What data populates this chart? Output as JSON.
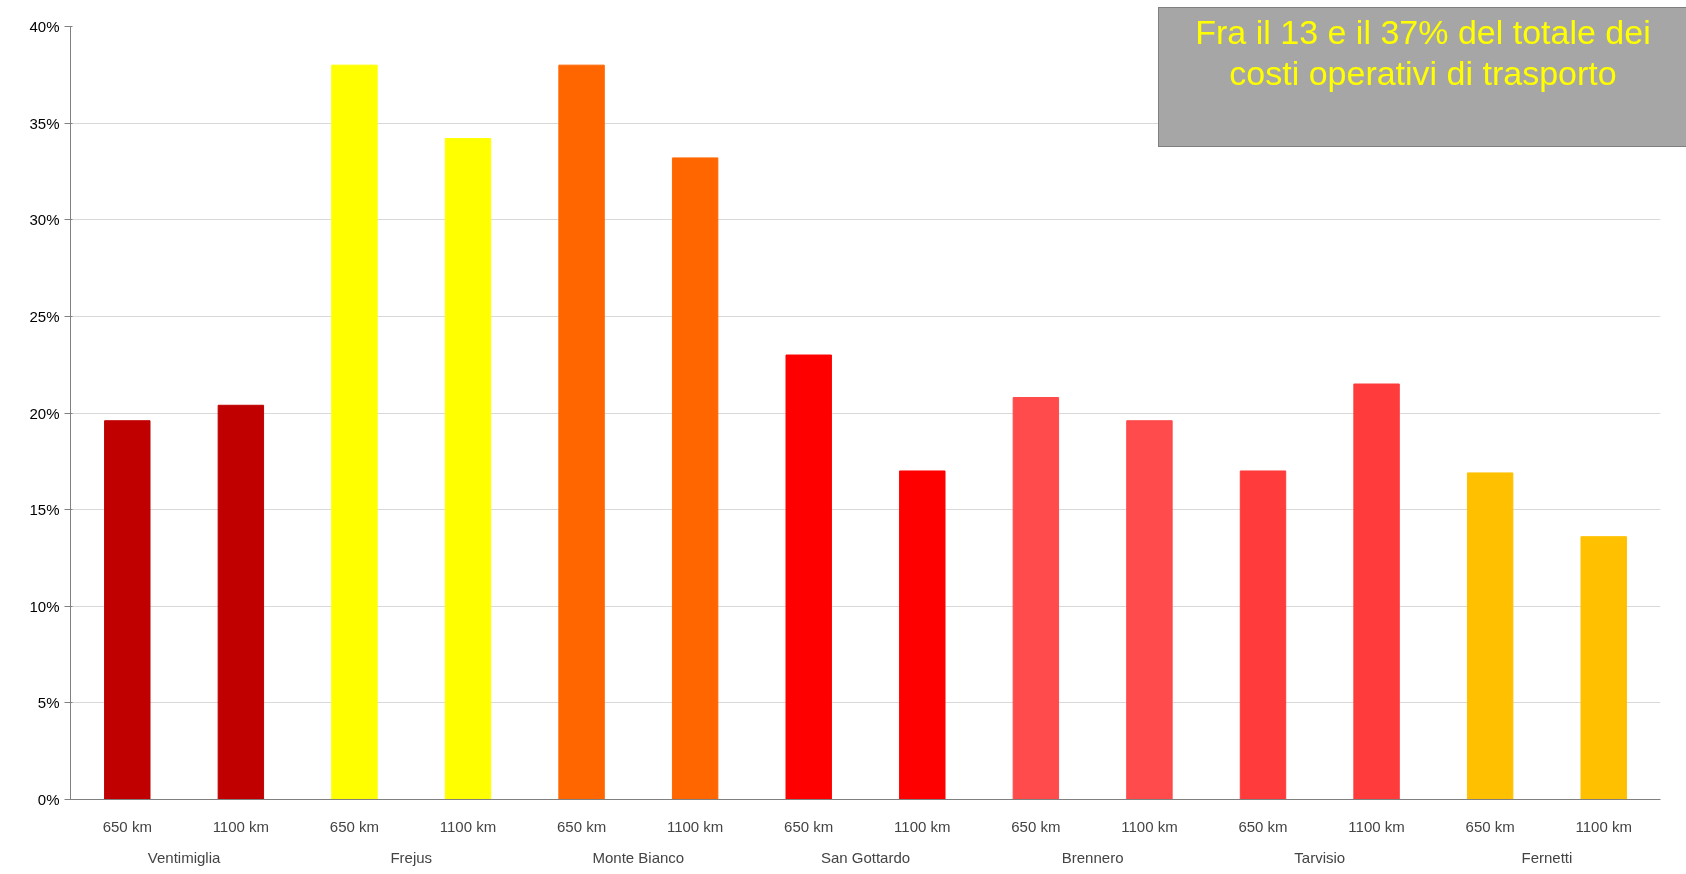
{
  "chart_data": {
    "type": "bar",
    "categories": [
      "650 km",
      "1100 km",
      "650 km",
      "1100 km",
      "650 km",
      "1100 km",
      "650 km",
      "1100 km",
      "650 km",
      "1100 km",
      "650 km",
      "1100 km",
      "650 km",
      "1100 km"
    ],
    "values": [
      19.6,
      20.4,
      38.0,
      34.2,
      38.0,
      33.2,
      23.0,
      17.0,
      20.8,
      19.6,
      17.0,
      21.5,
      16.9,
      13.6
    ],
    "colors": [
      "#c00000",
      "#c00000",
      "#ffff00",
      "#ffff00",
      "#ff6600",
      "#ff6600",
      "#ff0000",
      "#ff0000",
      "#ff4b4b",
      "#ff4b4b",
      "#ff3b3b",
      "#ff3b3b",
      "#ffc000",
      "#ffc000"
    ],
    "ylim": [
      0,
      40
    ],
    "yticks": [
      {
        "value": 0,
        "label": "0%"
      },
      {
        "value": 5,
        "label": "5%"
      },
      {
        "value": 10,
        "label": "10%"
      },
      {
        "value": 15,
        "label": "15%"
      },
      {
        "value": 20,
        "label": "20%"
      },
      {
        "value": 25,
        "label": "25%"
      },
      {
        "value": 30,
        "label": "30%"
      },
      {
        "value": 35,
        "label": "35%"
      },
      {
        "value": 40,
        "label": "40%"
      }
    ],
    "grid": "y",
    "annotations": [
      "Fra il 13 e il 37% del totale dei costi operativi di trasporto",
      "Ventimiglia",
      "Frejus",
      "Monte Bianco",
      "San Gottardo",
      "Brennero",
      "Tarvisio",
      "Fernetti"
    ]
  }
}
